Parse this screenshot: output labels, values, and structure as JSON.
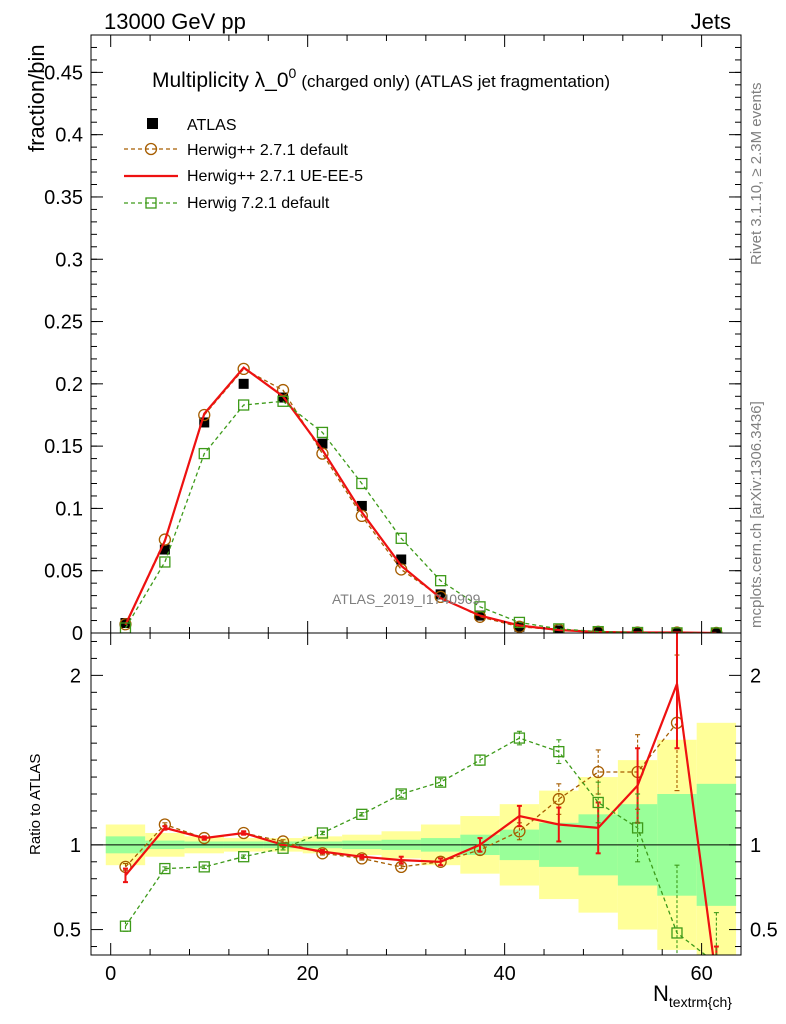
{
  "header": {
    "left": "13000 GeV pp",
    "right": "Jets"
  },
  "side_labels": {
    "top": "Rivet 3.1.10, ≥ 2.3M events",
    "bottom": "mcplots.cern.ch [arXiv:1306.3436]"
  },
  "watermark": "ATLAS_2019_I1740909",
  "chart_data": [
    {
      "panel": "main",
      "type": "line",
      "title_main": "Multiplicity λ_0",
      "title_sup": "0",
      "title_rest": "(charged only) (ATLAS jet fragmentation)",
      "ylabel": "fraction/bin",
      "xlim": [
        -2,
        64
      ],
      "ylim": [
        0,
        0.48
      ],
      "yticks": [
        0,
        0.05,
        0.1,
        0.15,
        0.2,
        0.25,
        0.3,
        0.35,
        0.4,
        0.45
      ],
      "ytick_labels": [
        "0",
        "0.05",
        "0.1",
        "0.15",
        "0.2",
        "0.25",
        "0.3",
        "0.35",
        "0.4",
        "0.45"
      ],
      "legend_position": "top-left",
      "x": [
        1.5,
        5.5,
        9.5,
        13.5,
        17.5,
        21.5,
        25.5,
        29.5,
        33.5,
        37.5,
        41.5,
        45.5,
        49.5,
        53.5,
        57.5,
        61.5
      ],
      "series": [
        {
          "name": "ATLAS",
          "style": "data",
          "color": "#000000",
          "values": [
            0.008,
            0.067,
            0.169,
            0.2,
            0.189,
            0.152,
            0.102,
            0.059,
            0.031,
            0.014,
            0.005,
            0.0021,
            0.0007,
            0.0003,
            0.0002,
            0.0001
          ]
        },
        {
          "name": "Herwig++ 2.7.1 default",
          "style": "circle-dashed",
          "color": "#a65d00",
          "values": [
            0.007,
            0.075,
            0.175,
            0.212,
            0.195,
            0.144,
            0.094,
            0.051,
            0.029,
            0.013,
            0.005,
            0.0026,
            0.001,
            0.0004,
            0.00035,
            0.0001
          ]
        },
        {
          "name": "Herwig++ 2.7.1 UE-EE-5",
          "style": "solid",
          "color": "#ee1111",
          "values": [
            0.0066,
            0.074,
            0.176,
            0.213,
            0.19,
            0.147,
            0.097,
            0.054,
            0.028,
            0.014,
            0.006,
            0.0024,
            0.0008,
            0.0004,
            0.0004,
            2e-05
          ]
        },
        {
          "name": "Herwig 7.2.1 default",
          "style": "square-dashed",
          "color": "#3d9a19",
          "values": [
            0.004,
            0.057,
            0.144,
            0.183,
            0.186,
            0.161,
            0.12,
            0.076,
            0.042,
            0.021,
            0.0085,
            0.0033,
            0.0011,
            0.0004,
            0.0001,
            3e-05
          ]
        }
      ]
    },
    {
      "panel": "ratio",
      "type": "line",
      "ylabel": "Ratio to ATLAS",
      "xlabel": "N",
      "xlabel_sub": "textrm{ch}",
      "xlim": [
        -2,
        64
      ],
      "ylim": [
        0.35,
        2.25
      ],
      "yticks": [
        0.5,
        1,
        2
      ],
      "ytick_labels": [
        "0.5",
        "1",
        "2"
      ],
      "xticks": [
        0,
        20,
        40,
        60
      ],
      "xtick_labels": [
        "0",
        "20",
        "40",
        "60"
      ],
      "bins": [
        [
          -0.5,
          3.5
        ],
        [
          3.5,
          7.5
        ],
        [
          7.5,
          11.5
        ],
        [
          11.5,
          15.5
        ],
        [
          15.5,
          19.5
        ],
        [
          19.5,
          23.5
        ],
        [
          23.5,
          27.5
        ],
        [
          27.5,
          31.5
        ],
        [
          31.5,
          35.5
        ],
        [
          35.5,
          39.5
        ],
        [
          39.5,
          43.5
        ],
        [
          43.5,
          47.5
        ],
        [
          47.5,
          51.5
        ],
        [
          51.5,
          55.5
        ],
        [
          55.5,
          59.5
        ],
        [
          59.5,
          63.5
        ]
      ],
      "band_green_halfwidth": [
        0.05,
        0.025,
        0.02,
        0.02,
        0.02,
        0.02,
        0.025,
        0.03,
        0.04,
        0.06,
        0.09,
        0.13,
        0.18,
        0.24,
        0.3,
        0.36
      ],
      "band_yellow_halfwidth": [
        0.12,
        0.07,
        0.05,
        0.04,
        0.04,
        0.05,
        0.06,
        0.08,
        0.12,
        0.17,
        0.24,
        0.32,
        0.4,
        0.5,
        0.62,
        0.72
      ],
      "x": [
        1.5,
        5.5,
        9.5,
        13.5,
        17.5,
        21.5,
        25.5,
        29.5,
        33.5,
        37.5,
        41.5,
        45.5,
        49.5,
        53.5,
        57.5,
        61.5
      ],
      "series": [
        {
          "name": "Herwig++ 2.7.1 default",
          "style": "circle-dashed",
          "color": "#a65d00",
          "values": [
            0.87,
            1.12,
            1.04,
            1.07,
            1.02,
            0.95,
            0.92,
            0.87,
            0.9,
            0.97,
            1.08,
            1.27,
            1.43,
            1.43,
            1.72,
            null
          ],
          "errors": [
            0.02,
            0.01,
            0.01,
            0.01,
            0.01,
            0.01,
            0.01,
            0.01,
            0.02,
            0.03,
            0.05,
            0.09,
            0.13,
            0.22,
            0.4,
            null
          ]
        },
        {
          "name": "Herwig++ 2.7.1 UE-EE-5",
          "style": "solid",
          "color": "#ee1111",
          "values": [
            0.82,
            1.1,
            1.04,
            1.07,
            1.0,
            0.96,
            0.93,
            0.91,
            0.9,
            1.0,
            1.17,
            1.12,
            1.1,
            1.35,
            1.95,
            0.2
          ],
          "errors": [
            0.04,
            0.01,
            0.01,
            0.01,
            0.01,
            0.01,
            0.01,
            0.02,
            0.02,
            0.04,
            0.06,
            0.1,
            0.15,
            0.22,
            0.38,
            0.2
          ]
        },
        {
          "name": "Herwig 7.2.1 default",
          "style": "square-dashed",
          "color": "#3d9a19",
          "values": [
            0.52,
            0.86,
            0.87,
            0.93,
            0.98,
            1.07,
            1.18,
            1.3,
            1.37,
            1.5,
            1.63,
            1.55,
            1.25,
            1.1,
            0.48,
            0.3
          ],
          "errors": [
            0.03,
            0.01,
            0.01,
            0.01,
            0.01,
            0.01,
            0.01,
            0.02,
            0.02,
            0.03,
            0.04,
            0.07,
            0.12,
            0.2,
            0.4,
            0.3
          ]
        }
      ]
    }
  ]
}
